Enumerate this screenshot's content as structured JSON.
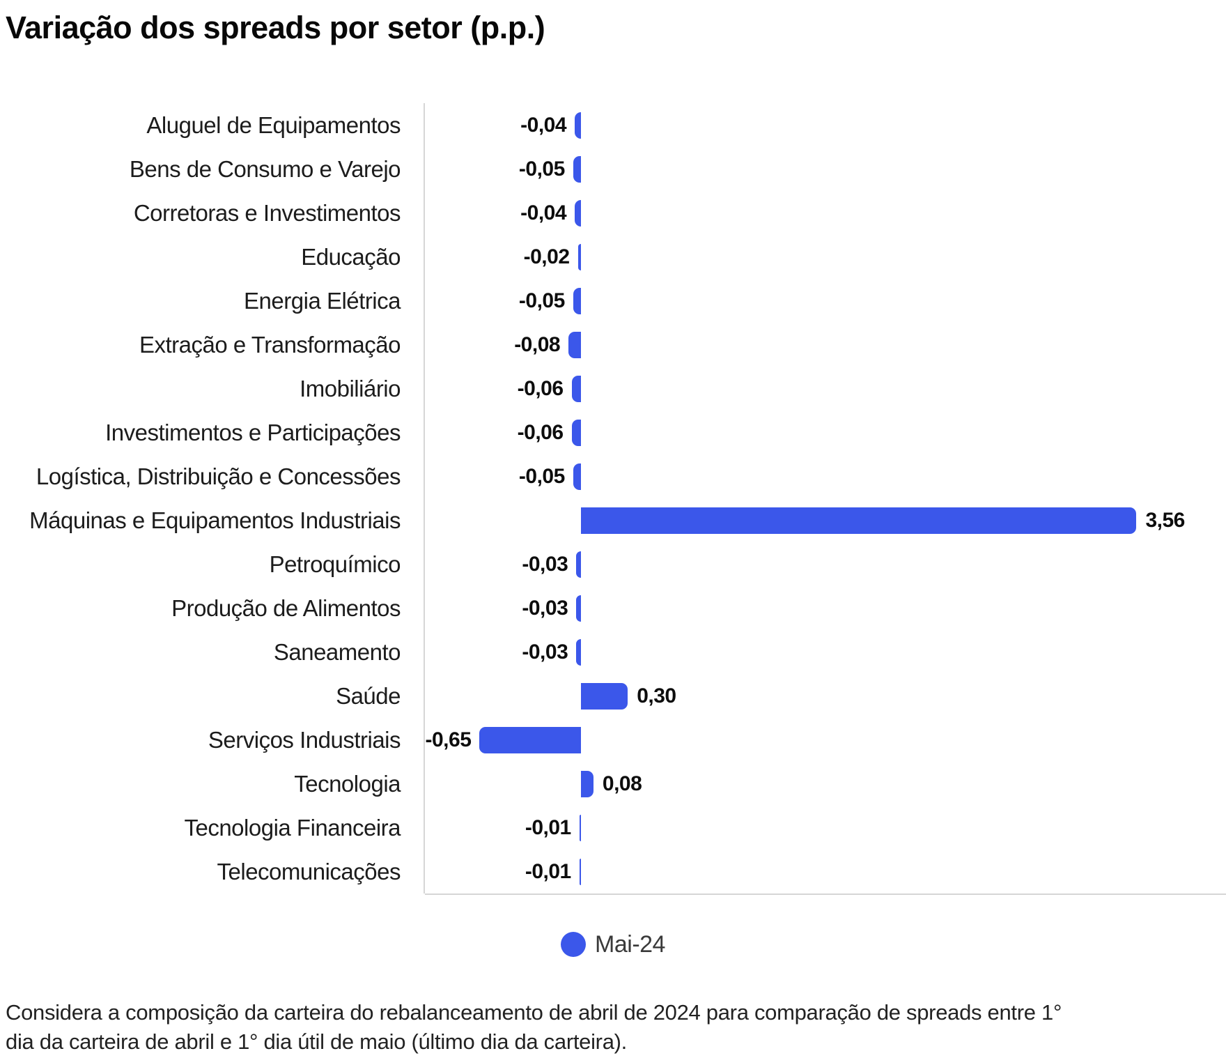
{
  "title": "Variação dos spreads por setor (p.p.)",
  "legend": {
    "label": "Mai-24",
    "marker_color": "#3B57EA"
  },
  "footnote": "Considera a composição da carteira do rebalanceamento de abril de 2024 para comparação de spreads entre 1° dia da carteira de abril e 1° dia útil de maio (último dia da carteira).",
  "chart_data": {
    "type": "bar",
    "orientation": "horizontal",
    "title": "Variação dos spreads por setor (p.p.)",
    "categories": [
      "Aluguel de Equipamentos",
      "Bens de Consumo e Varejo",
      "Corretoras e Investimentos",
      "Educação",
      "Energia Elétrica",
      "Extração e Transformação",
      "Imobiliário",
      "Investimentos e Participações",
      "Logística, Distribuição e Concessões",
      "Máquinas e Equipamentos Industriais",
      "Petroquímico",
      "Produção de Alimentos",
      "Saneamento",
      "Saúde",
      "Serviços Industriais",
      "Tecnologia",
      "Tecnologia Financeira",
      "Telecomunicações"
    ],
    "series": [
      {
        "name": "Mai-24",
        "values": [
          -0.04,
          -0.05,
          -0.04,
          -0.02,
          -0.05,
          -0.08,
          -0.06,
          -0.06,
          -0.05,
          3.56,
          -0.03,
          -0.03,
          -0.03,
          0.3,
          -0.65,
          0.08,
          -0.01,
          -0.01
        ]
      }
    ],
    "value_labels": [
      "-0,04",
      "-0,05",
      "-0,04",
      "-0,02",
      "-0,05",
      "-0,08",
      "-0,06",
      "-0,06",
      "-0,05",
      "3,56",
      "-0,03",
      "-0,03",
      "-0,03",
      "0,30",
      "-0,65",
      "0,08",
      "-0,01",
      "-0,01"
    ],
    "bar_color": "#3B57EA",
    "axis_color": "#d6d6d6",
    "xlim": [
      -1.0,
      4.15
    ],
    "grid": false,
    "data_labels": true,
    "legend_position": "bottom"
  }
}
